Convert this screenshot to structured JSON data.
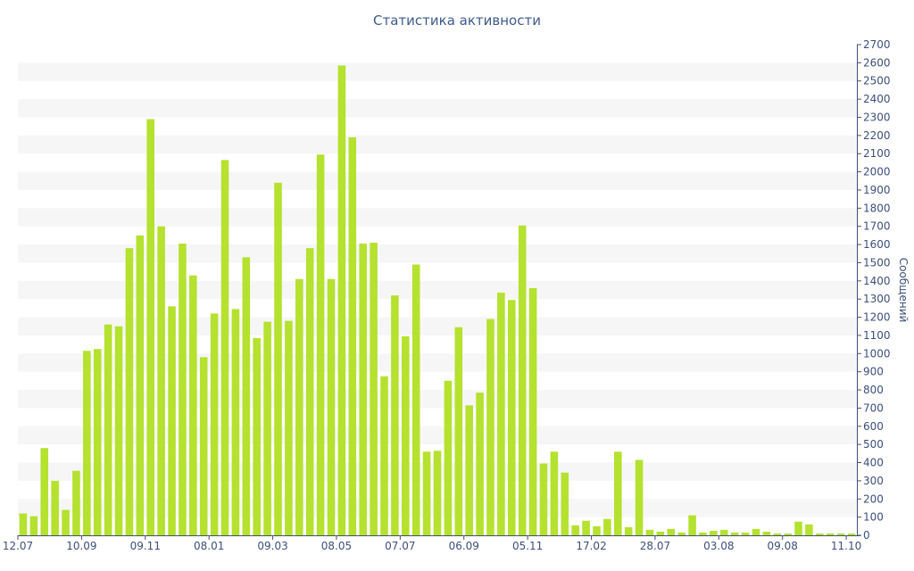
{
  "chart_data": {
    "type": "bar",
    "title": "Статистика активности",
    "xlabel": "",
    "ylabel": "Сообщений",
    "y_axis_side": "right",
    "ylim": [
      0,
      2700
    ],
    "ytick_step": 100,
    "grid": "alternating horizontal bands",
    "bar_color": "#b5e12f",
    "band_color": "#f6f6f6",
    "axis_color": "#3d4f7a",
    "title_color": "#3d5a8a",
    "xtick_labels": [
      {
        "index": 0,
        "label": "12.07"
      },
      {
        "index": 6,
        "label": "10.09"
      },
      {
        "index": 12,
        "label": "09.11"
      },
      {
        "index": 18,
        "label": "08.01"
      },
      {
        "index": 24,
        "label": "09.03"
      },
      {
        "index": 30,
        "label": "08.05"
      },
      {
        "index": 36,
        "label": "07.07"
      },
      {
        "index": 42,
        "label": "06.09"
      },
      {
        "index": 48,
        "label": "05.11"
      },
      {
        "index": 54,
        "label": "17.02"
      },
      {
        "index": 60,
        "label": "28.07"
      },
      {
        "index": 66,
        "label": "03.08"
      },
      {
        "index": 72,
        "label": "09.08"
      },
      {
        "index": 78,
        "label": "11.10"
      }
    ],
    "values": [
      120,
      105,
      480,
      300,
      140,
      355,
      1015,
      1025,
      1160,
      1150,
      1580,
      1650,
      2290,
      1700,
      1260,
      1605,
      1430,
      980,
      1220,
      2065,
      1245,
      1530,
      1085,
      1175,
      1940,
      1180,
      1410,
      1580,
      2095,
      1410,
      2585,
      2190,
      1605,
      1610,
      875,
      1320,
      1095,
      1490,
      460,
      465,
      850,
      1145,
      715,
      785,
      1190,
      1335,
      1295,
      1705,
      1360,
      395,
      460,
      345,
      55,
      80,
      50,
      90,
      460,
      45,
      415,
      30,
      20,
      35,
      15,
      110,
      15,
      25,
      30,
      15,
      15,
      35,
      20,
      10,
      10,
      75,
      60,
      10,
      10,
      10,
      10
    ]
  }
}
